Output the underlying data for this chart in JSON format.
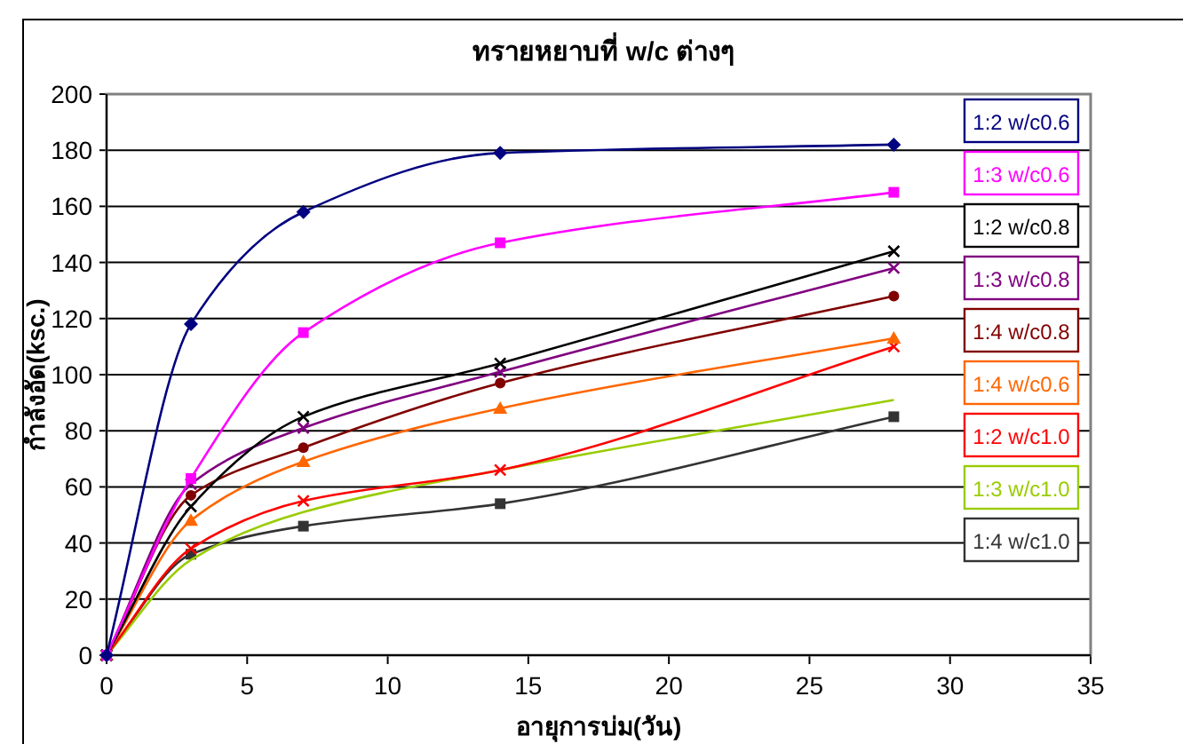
{
  "chart_data": {
    "type": "line",
    "title": "ทรายหยาบที่ w/c ต่างๆ",
    "xlabel": "อายุการบ่ม(วัน)",
    "ylabel": "กำลังอัด(ksc.)",
    "x": [
      0,
      3,
      7,
      14,
      28
    ],
    "xlim": [
      0,
      35
    ],
    "xticks": [
      0,
      5,
      10,
      15,
      20,
      25,
      30,
      35
    ],
    "ylim": [
      0,
      200
    ],
    "yticks": [
      0,
      20,
      40,
      60,
      80,
      100,
      120,
      140,
      160,
      180,
      200
    ],
    "grid": "y",
    "legend": "right",
    "series": [
      {
        "name": "1:2 w/c0.6",
        "color": "#000080",
        "marker": "diamond",
        "values": [
          0,
          118,
          158,
          179,
          182
        ]
      },
      {
        "name": "1:3 w/c0.6",
        "color": "#ff00ff",
        "marker": "square",
        "values": [
          0,
          63,
          115,
          147,
          165
        ]
      },
      {
        "name": "1:2 w/c0.8",
        "color": "#000000",
        "marker": "cross",
        "values": [
          0,
          53,
          85,
          104,
          144
        ]
      },
      {
        "name": "1:3 w/c0.8",
        "color": "#800080",
        "marker": "cross",
        "values": [
          0,
          61,
          81,
          101,
          138
        ]
      },
      {
        "name": "1:4 w/c0.8",
        "color": "#800000",
        "marker": "circle",
        "values": [
          0,
          57,
          74,
          97,
          128
        ]
      },
      {
        "name": "1:4 w/c0.6",
        "color": "#ff6600",
        "marker": "triangle",
        "values": [
          0,
          48,
          69,
          88,
          113
        ]
      },
      {
        "name": "1:2 w/c1.0",
        "color": "#ff0000",
        "marker": "cross",
        "values": [
          0,
          38,
          55,
          66,
          110
        ]
      },
      {
        "name": "1:3 w/c1.0",
        "color": "#99cc00",
        "marker": "none",
        "values": [
          0,
          34,
          51,
          66,
          91
        ]
      },
      {
        "name": "1:4 w/c1.0",
        "color": "#333333",
        "marker": "square",
        "values": [
          0,
          36,
          46,
          54,
          85
        ]
      }
    ]
  }
}
